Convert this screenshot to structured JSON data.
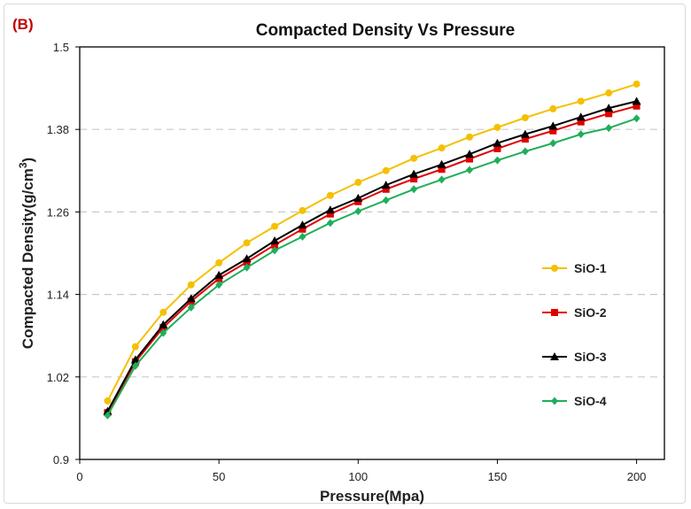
{
  "panel_label": "(B)",
  "chart_data": {
    "type": "line",
    "title": "Compacted Density Vs Pressure",
    "xlabel": "Pressure(Mpa)",
    "ylabel": "Compacted Density(g/cm3)",
    "xlim": [
      0,
      210
    ],
    "ylim": [
      0.9,
      1.5
    ],
    "xticks": [
      0,
      50,
      100,
      150,
      200
    ],
    "yticks": [
      0.9,
      1.02,
      1.14,
      1.26,
      1.38,
      1.5
    ],
    "ytick_labels": [
      "0.9",
      "1.02",
      "1.14",
      "1.26",
      "1.38",
      "1.5"
    ],
    "grid": "horizontal dashed",
    "legend": "right",
    "x": [
      10,
      20,
      30,
      40,
      50,
      60,
      70,
      80,
      90,
      100,
      110,
      120,
      130,
      140,
      150,
      160,
      170,
      180,
      190,
      200
    ],
    "series": [
      {
        "name": "SiO-1",
        "color": "#f5c000",
        "marker": "circle",
        "values": [
          0.985,
          1.064,
          1.114,
          1.154,
          1.186,
          1.215,
          1.239,
          1.262,
          1.284,
          1.303,
          1.32,
          1.338,
          1.353,
          1.369,
          1.383,
          1.397,
          1.41,
          1.421,
          1.433,
          1.446
        ]
      },
      {
        "name": "SiO-2",
        "color": "#e00000",
        "marker": "square",
        "values": [
          0.968,
          1.042,
          1.092,
          1.13,
          1.163,
          1.187,
          1.212,
          1.235,
          1.257,
          1.275,
          1.293,
          1.308,
          1.322,
          1.337,
          1.352,
          1.366,
          1.378,
          1.391,
          1.403,
          1.414
        ]
      },
      {
        "name": "SiO-3",
        "color": "#000000",
        "marker": "triangle",
        "values": [
          0.97,
          1.045,
          1.096,
          1.134,
          1.168,
          1.192,
          1.218,
          1.241,
          1.263,
          1.28,
          1.299,
          1.315,
          1.329,
          1.344,
          1.36,
          1.373,
          1.385,
          1.398,
          1.411,
          1.421
        ]
      },
      {
        "name": "SiO-4",
        "color": "#1fae5a",
        "marker": "diamond",
        "values": [
          0.964,
          1.036,
          1.084,
          1.121,
          1.154,
          1.179,
          1.204,
          1.224,
          1.244,
          1.261,
          1.277,
          1.293,
          1.307,
          1.321,
          1.335,
          1.348,
          1.36,
          1.373,
          1.382,
          1.396
        ]
      }
    ]
  }
}
